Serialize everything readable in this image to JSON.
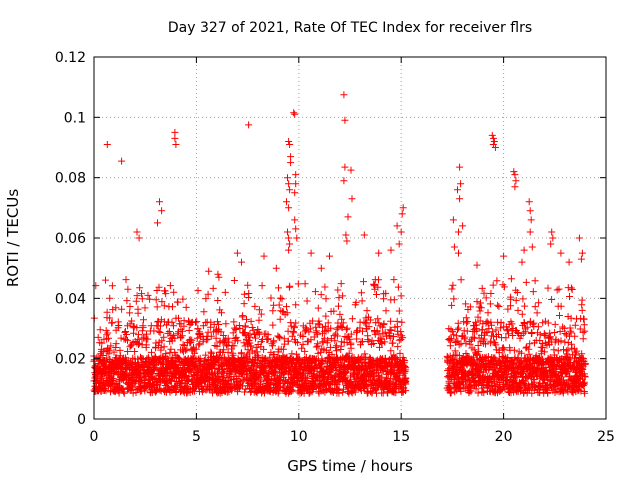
{
  "chart_data": {
    "type": "scatter",
    "title": "Day 327 of 2021, Rate Of TEC Index for receiver flrs",
    "xlabel": "GPS time / hours",
    "ylabel": "ROTI / TECUs",
    "xlim": [
      0,
      25
    ],
    "ylim": [
      0,
      0.12
    ],
    "x_ticks": [
      0,
      5,
      10,
      15,
      20,
      25
    ],
    "x_tick_labels": [
      "0",
      "5",
      "10",
      "15",
      "20",
      "25"
    ],
    "y_ticks": [
      0,
      0.02,
      0.04,
      0.06,
      0.08,
      0.1,
      0.12
    ],
    "y_tick_labels": [
      "0",
      "0.02",
      "0.04",
      "0.06",
      "0.08",
      "0.1",
      "0.12"
    ],
    "grid": true,
    "marker": "plus",
    "color": "#ff0000",
    "series": [
      {
        "name": "flrs",
        "points": [
          [
            0.65,
            0.091
          ],
          [
            1.35,
            0.0855
          ],
          [
            3.2,
            0.072
          ],
          [
            3.3,
            0.069
          ],
          [
            3.1,
            0.065
          ],
          [
            3.95,
            0.095
          ],
          [
            3.95,
            0.093
          ],
          [
            4.0,
            0.091
          ],
          [
            7.55,
            0.0975
          ],
          [
            9.5,
            0.092
          ],
          [
            9.55,
            0.091
          ],
          [
            9.6,
            0.087
          ],
          [
            9.6,
            0.085
          ],
          [
            9.45,
            0.08
          ],
          [
            9.5,
            0.078
          ],
          [
            9.55,
            0.076
          ],
          [
            9.4,
            0.072
          ],
          [
            9.5,
            0.07
          ],
          [
            9.45,
            0.062
          ],
          [
            9.5,
            0.06
          ],
          [
            9.55,
            0.058
          ],
          [
            9.5,
            0.056
          ],
          [
            9.75,
            0.1015
          ],
          [
            9.8,
            0.101
          ],
          [
            9.85,
            0.081
          ],
          [
            9.85,
            0.078
          ],
          [
            9.8,
            0.075
          ],
          [
            9.8,
            0.066
          ],
          [
            9.85,
            0.063
          ],
          [
            9.9,
            0.06
          ],
          [
            12.2,
            0.1075
          ],
          [
            12.25,
            0.099
          ],
          [
            12.25,
            0.0835
          ],
          [
            12.55,
            0.0825
          ],
          [
            12.2,
            0.079
          ],
          [
            12.6,
            0.073
          ],
          [
            12.4,
            0.067
          ],
          [
            12.3,
            0.061
          ],
          [
            12.35,
            0.059
          ],
          [
            13.2,
            0.061
          ],
          [
            15.1,
            0.07
          ],
          [
            15.05,
            0.068
          ],
          [
            14.8,
            0.064
          ],
          [
            15.0,
            0.062
          ],
          [
            14.9,
            0.058
          ],
          [
            17.55,
            0.066
          ],
          [
            17.85,
            0.0835
          ],
          [
            17.9,
            0.078
          ],
          [
            17.75,
            0.076
          ],
          [
            17.85,
            0.073
          ],
          [
            17.8,
            0.062
          ],
          [
            17.6,
            0.057
          ],
          [
            18.0,
            0.064
          ],
          [
            17.8,
            0.055
          ],
          [
            19.45,
            0.094
          ],
          [
            19.5,
            0.093
          ],
          [
            19.55,
            0.092
          ],
          [
            19.5,
            0.091
          ],
          [
            19.6,
            0.09
          ],
          [
            20.5,
            0.082
          ],
          [
            20.55,
            0.081
          ],
          [
            20.6,
            0.079
          ],
          [
            20.55,
            0.077
          ],
          [
            21.25,
            0.072
          ],
          [
            21.3,
            0.069
          ],
          [
            21.35,
            0.066
          ],
          [
            21.3,
            0.062
          ],
          [
            21.4,
            0.057
          ],
          [
            22.3,
            0.058
          ],
          [
            22.35,
            0.062
          ],
          [
            22.4,
            0.06
          ],
          [
            23.7,
            0.06
          ],
          [
            23.85,
            0.055
          ],
          [
            23.8,
            0.053
          ],
          [
            2.1,
            0.062
          ],
          [
            2.2,
            0.06
          ],
          [
            5.6,
            0.049
          ],
          [
            6.05,
            0.048
          ],
          [
            6.1,
            0.047
          ],
          [
            7.0,
            0.055
          ],
          [
            7.2,
            0.052
          ],
          [
            8.3,
            0.054
          ],
          [
            8.9,
            0.05
          ],
          [
            10.6,
            0.055
          ],
          [
            11.1,
            0.05
          ],
          [
            11.5,
            0.054
          ],
          [
            13.9,
            0.055
          ],
          [
            14.5,
            0.056
          ],
          [
            18.7,
            0.051
          ],
          [
            20.0,
            0.054
          ],
          [
            20.9,
            0.052
          ],
          [
            21.0,
            0.056
          ],
          [
            22.8,
            0.055
          ],
          [
            23.2,
            0.052
          ]
        ],
        "segments": [
          {
            "x_start": 0.0,
            "x_end": 15.25,
            "baseline": 0.0145
          },
          {
            "x_start": 17.25,
            "x_end": 24.0,
            "baseline": 0.0145
          }
        ]
      }
    ]
  }
}
